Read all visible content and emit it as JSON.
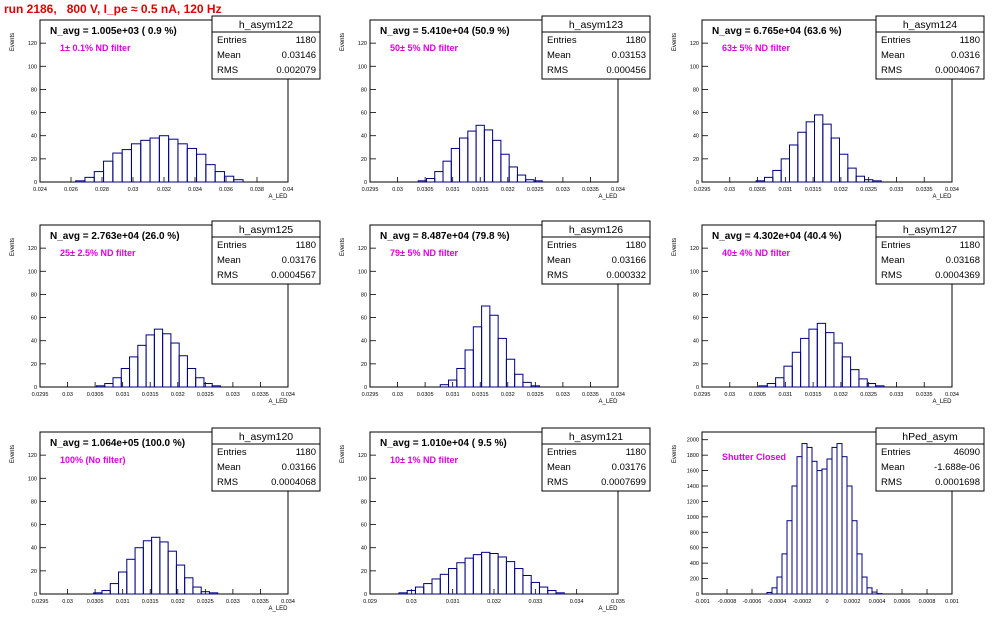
{
  "page_title": "run 2186,   800 V, I_pe ≈ 0.5 nA, 120 Hz",
  "colors": {
    "title": "#e00000",
    "annotation": "#e000e0",
    "histogram": "#00007f",
    "axis": "#000000"
  },
  "chart_data": [
    {
      "type": "bar",
      "hist_name": "h_asym122",
      "title": "N_avg = 1.005e+03 ( 0.9 %)",
      "annotation": "1± 0.1% ND filter",
      "ylabel": "Events",
      "xlabel": "A_LED",
      "stats": [
        [
          "Entries",
          "1180"
        ],
        [
          "Mean",
          "0.03146"
        ],
        [
          "RMS",
          "0.002079"
        ]
      ],
      "xlim": [
        0.024,
        0.04
      ],
      "ylim": [
        0,
        140
      ],
      "xticks": [
        "0.024",
        "0.026",
        "0.028",
        "0.03",
        "0.032",
        "0.034",
        "0.036",
        "0.038",
        "0.04"
      ],
      "xtick_values": [
        0.024,
        0.026,
        0.028,
        0.03,
        0.032,
        0.034,
        0.036,
        0.038,
        0.04
      ],
      "yticks": [
        "0",
        "20",
        "40",
        "60",
        "80",
        "100",
        "120"
      ],
      "ytick_values": [
        0,
        20,
        40,
        60,
        80,
        100,
        120
      ],
      "x": [
        0.0266,
        0.0272,
        0.0278,
        0.0284,
        0.029,
        0.0296,
        0.0302,
        0.0308,
        0.0314,
        0.032,
        0.0326,
        0.0332,
        0.0338,
        0.0344,
        0.035,
        0.0356,
        0.0362,
        0.0368
      ],
      "values": [
        1,
        4,
        9,
        18,
        25,
        28,
        33,
        36,
        38,
        40,
        37,
        33,
        29,
        24,
        15,
        9,
        5,
        2
      ]
    },
    {
      "type": "bar",
      "hist_name": "h_asym123",
      "title": "N_avg = 5.410e+04 (50.9 %)",
      "annotation": "50± 5% ND filter",
      "ylabel": "Events",
      "xlabel": "A_LED",
      "stats": [
        [
          "Entries",
          "1180"
        ],
        [
          "Mean",
          "0.03153"
        ],
        [
          "RMS",
          "0.000456"
        ]
      ],
      "xlim": [
        0.0295,
        0.034
      ],
      "ylim": [
        0,
        140
      ],
      "xticks": [
        "0.0295",
        "0.03",
        "0.0305",
        "0.031",
        "0.0315",
        "0.032",
        "0.0325",
        "0.033",
        "0.0335",
        "0.034"
      ],
      "xtick_values": [
        0.0295,
        0.03,
        0.0305,
        0.031,
        0.0315,
        0.032,
        0.0325,
        0.033,
        0.0335,
        0.034
      ],
      "yticks": [
        "0",
        "20",
        "40",
        "60",
        "80",
        "100",
        "120"
      ],
      "ytick_values": [
        0,
        20,
        40,
        60,
        80,
        100,
        120
      ],
      "x": [
        0.03045,
        0.0306,
        0.03075,
        0.0309,
        0.03105,
        0.0312,
        0.03135,
        0.0315,
        0.03165,
        0.0318,
        0.03195,
        0.0321,
        0.03225,
        0.0324,
        0.03255
      ],
      "values": [
        1,
        3,
        9,
        18,
        29,
        38,
        44,
        49,
        45,
        36,
        24,
        13,
        6,
        2,
        1
      ]
    },
    {
      "type": "bar",
      "hist_name": "h_asym124",
      "title": "N_avg = 6.765e+04 (63.6 %)",
      "annotation": "63± 5% ND filter",
      "ylabel": "Events",
      "xlabel": "A_LED",
      "stats": [
        [
          "Entries",
          "1180"
        ],
        [
          "Mean",
          "0.0316"
        ],
        [
          "RMS",
          "0.0004067"
        ]
      ],
      "xlim": [
        0.0295,
        0.034
      ],
      "ylim": [
        0,
        140
      ],
      "xticks": [
        "0.0295",
        "0.03",
        "0.0305",
        "0.031",
        "0.0315",
        "0.032",
        "0.0325",
        "0.033",
        "0.0335",
        "0.034"
      ],
      "xtick_values": [
        0.0295,
        0.03,
        0.0305,
        0.031,
        0.0315,
        0.032,
        0.0325,
        0.033,
        0.0335,
        0.034
      ],
      "yticks": [
        "0",
        "20",
        "40",
        "60",
        "80",
        "100",
        "120"
      ],
      "ytick_values": [
        0,
        20,
        40,
        60,
        80,
        100,
        120
      ],
      "x": [
        0.03055,
        0.0307,
        0.03085,
        0.031,
        0.03115,
        0.0313,
        0.03145,
        0.0316,
        0.03175,
        0.0319,
        0.03205,
        0.0322,
        0.03235,
        0.0325,
        0.03265
      ],
      "values": [
        1,
        4,
        10,
        20,
        32,
        43,
        52,
        58,
        50,
        38,
        24,
        12,
        5,
        2,
        1
      ]
    },
    {
      "type": "bar",
      "hist_name": "h_asym125",
      "title": "N_avg = 2.763e+04 (26.0 %)",
      "annotation": "25± 2.5% ND filter",
      "ylabel": "Events",
      "xlabel": "A_LED",
      "stats": [
        [
          "Entries",
          "1180"
        ],
        [
          "Mean",
          "0.03176"
        ],
        [
          "RMS",
          "0.0004567"
        ]
      ],
      "xlim": [
        0.0295,
        0.034
      ],
      "ylim": [
        0,
        140
      ],
      "xticks": [
        "0.0295",
        "0.03",
        "0.0305",
        "0.031",
        "0.0315",
        "0.032",
        "0.0325",
        "0.033",
        "0.0335",
        "0.034"
      ],
      "xtick_values": [
        0.0295,
        0.03,
        0.0305,
        0.031,
        0.0315,
        0.032,
        0.0325,
        0.033,
        0.0335,
        0.034
      ],
      "yticks": [
        "0",
        "20",
        "40",
        "60",
        "80",
        "100",
        "120"
      ],
      "ytick_values": [
        0,
        20,
        40,
        60,
        80,
        100,
        120
      ],
      "x": [
        0.0306,
        0.03075,
        0.0309,
        0.03105,
        0.0312,
        0.03135,
        0.0315,
        0.03165,
        0.0318,
        0.03195,
        0.0321,
        0.03225,
        0.0324,
        0.03255,
        0.0327
      ],
      "values": [
        1,
        3,
        8,
        16,
        26,
        36,
        45,
        50,
        46,
        38,
        27,
        16,
        8,
        3,
        1
      ]
    },
    {
      "type": "bar",
      "hist_name": "h_asym126",
      "title": "N_avg = 8.487e+04 (79.8 %)",
      "annotation": "79± 5% ND filter",
      "ylabel": "Events",
      "xlabel": "A_LED",
      "stats": [
        [
          "Entries",
          "1180"
        ],
        [
          "Mean",
          "0.03166"
        ],
        [
          "RMS",
          "0.000332"
        ]
      ],
      "xlim": [
        0.0295,
        0.034
      ],
      "ylim": [
        0,
        140
      ],
      "xticks": [
        "0.0295",
        "0.03",
        "0.0305",
        "0.031",
        "0.0315",
        "0.032",
        "0.0325",
        "0.033",
        "0.0335",
        "0.034"
      ],
      "xtick_values": [
        0.0295,
        0.03,
        0.0305,
        0.031,
        0.0315,
        0.032,
        0.0325,
        0.033,
        0.0335,
        0.034
      ],
      "yticks": [
        "0",
        "20",
        "40",
        "60",
        "80",
        "100",
        "120"
      ],
      "ytick_values": [
        0,
        20,
        40,
        60,
        80,
        100,
        120
      ],
      "x": [
        0.03085,
        0.031,
        0.03115,
        0.0313,
        0.03145,
        0.0316,
        0.03175,
        0.0319,
        0.03205,
        0.0322,
        0.03235,
        0.0325
      ],
      "values": [
        2,
        6,
        16,
        32,
        52,
        70,
        62,
        42,
        24,
        11,
        4,
        1
      ]
    },
    {
      "type": "bar",
      "hist_name": "h_asym127",
      "title": "N_avg = 4.302e+04 (40.4 %)",
      "annotation": "40± 4% ND filter",
      "ylabel": "Events",
      "xlabel": "A_LED",
      "stats": [
        [
          "Entries",
          "1180"
        ],
        [
          "Mean",
          "0.03168"
        ],
        [
          "RMS",
          "0.0004369"
        ]
      ],
      "xlim": [
        0.0295,
        0.034
      ],
      "ylim": [
        0,
        140
      ],
      "xticks": [
        "0.0295",
        "0.03",
        "0.0305",
        "0.031",
        "0.0315",
        "0.032",
        "0.0325",
        "0.033",
        "0.0335",
        "0.034"
      ],
      "xtick_values": [
        0.0295,
        0.03,
        0.0305,
        0.031,
        0.0315,
        0.032,
        0.0325,
        0.033,
        0.0335,
        0.034
      ],
      "yticks": [
        "0",
        "20",
        "40",
        "60",
        "80",
        "100",
        "120"
      ],
      "ytick_values": [
        0,
        20,
        40,
        60,
        80,
        100,
        120
      ],
      "x": [
        0.0306,
        0.03075,
        0.0309,
        0.03105,
        0.0312,
        0.03135,
        0.0315,
        0.03165,
        0.0318,
        0.03195,
        0.0321,
        0.03225,
        0.0324,
        0.03255,
        0.0327
      ],
      "values": [
        1,
        3,
        8,
        18,
        30,
        42,
        50,
        55,
        47,
        38,
        26,
        15,
        7,
        3,
        1
      ]
    },
    {
      "type": "bar",
      "hist_name": "h_asym120",
      "title": "N_avg = 1.064e+05 (100.0 %)",
      "annotation": "100% (No filter)",
      "ylabel": "Events",
      "xlabel": "A_LED",
      "stats": [
        [
          "Entries",
          "1180"
        ],
        [
          "Mean",
          "0.03166"
        ],
        [
          "RMS",
          "0.0004068"
        ]
      ],
      "xlim": [
        0.0295,
        0.034
      ],
      "ylim": [
        0,
        140
      ],
      "xticks": [
        "0.0295",
        "0.03",
        "0.0305",
        "0.031",
        "0.0315",
        "0.032",
        "0.0325",
        "0.033",
        "0.0335",
        "0.034"
      ],
      "xtick_values": [
        0.0295,
        0.03,
        0.0305,
        0.031,
        0.0315,
        0.032,
        0.0325,
        0.033,
        0.0335,
        0.034
      ],
      "yticks": [
        "0",
        "20",
        "40",
        "60",
        "80",
        "100",
        "120"
      ],
      "ytick_values": [
        0,
        20,
        40,
        60,
        80,
        100,
        120
      ],
      "x": [
        0.03055,
        0.0307,
        0.03085,
        0.031,
        0.03115,
        0.0313,
        0.03145,
        0.0316,
        0.03175,
        0.0319,
        0.03205,
        0.0322,
        0.03235,
        0.0325,
        0.03265
      ],
      "values": [
        1,
        3,
        9,
        19,
        30,
        40,
        46,
        49,
        45,
        37,
        25,
        14,
        6,
        2,
        1
      ]
    },
    {
      "type": "bar",
      "hist_name": "h_asym121",
      "title": "N_avg = 1.010e+04 ( 9.5 %)",
      "annotation": "10± 1% ND filter",
      "ylabel": "Events",
      "xlabel": "A_LED",
      "stats": [
        [
          "Entries",
          "1180"
        ],
        [
          "Mean",
          "0.03176"
        ],
        [
          "RMS",
          "0.0007699"
        ]
      ],
      "xlim": [
        0.029,
        0.035
      ],
      "ylim": [
        0,
        140
      ],
      "xticks": [
        "0.029",
        "0.03",
        "0.031",
        "0.032",
        "0.033",
        "0.034",
        "0.035"
      ],
      "xtick_values": [
        0.029,
        0.03,
        0.031,
        0.032,
        0.033,
        0.034,
        0.035
      ],
      "yticks": [
        "0",
        "20",
        "40",
        "60",
        "80",
        "100",
        "120"
      ],
      "ytick_values": [
        0,
        20,
        40,
        60,
        80,
        100,
        120
      ],
      "x": [
        0.0298,
        0.03,
        0.0302,
        0.0304,
        0.0306,
        0.0308,
        0.031,
        0.0312,
        0.0314,
        0.0316,
        0.0318,
        0.032,
        0.0322,
        0.0324,
        0.0326,
        0.0328,
        0.033,
        0.0332,
        0.0334,
        0.0336
      ],
      "values": [
        1,
        3,
        6,
        9,
        13,
        17,
        22,
        27,
        31,
        34,
        36,
        35,
        32,
        28,
        22,
        16,
        10,
        6,
        3,
        1
      ]
    },
    {
      "type": "bar",
      "hist_name": "hPed_asym",
      "title": "",
      "annotation": "Shutter Closed",
      "ylabel": "Events",
      "xlabel": "",
      "stats": [
        [
          "Entries",
          "46090"
        ],
        [
          "Mean",
          "-1.688e-06"
        ],
        [
          "RMS",
          "0.0001698"
        ]
      ],
      "xlim": [
        -0.001,
        0.001
      ],
      "ylim": [
        0,
        2100
      ],
      "xticks": [
        "-0.001",
        "-0.0008",
        "-0.0006",
        "-0.0004",
        "-0.0002",
        "0",
        "0.0002",
        "0.0004",
        "0.0006",
        "0.0008",
        "0.001"
      ],
      "xtick_values": [
        -0.001,
        -0.0008,
        -0.0006,
        -0.0004,
        -0.0002,
        0,
        0.0002,
        0.0004,
        0.0006,
        0.0008,
        0.001
      ],
      "yticks": [
        "0",
        "200",
        "400",
        "600",
        "800",
        "1000",
        "1200",
        "1400",
        "1600",
        "1800",
        "2000"
      ],
      "ytick_values": [
        0,
        200,
        400,
        600,
        800,
        1000,
        1200,
        1400,
        1600,
        1800,
        2000
      ],
      "x": [
        -0.00046,
        -0.00042,
        -0.00038,
        -0.00034,
        -0.0003,
        -0.00026,
        -0.00022,
        -0.00018,
        -0.00014,
        -0.0001,
        -6e-05,
        -2e-05,
        2e-05,
        6e-05,
        0.0001,
        0.00014,
        0.00018,
        0.00022,
        0.00026,
        0.0003,
        0.00034,
        0.00038,
        0.00042
      ],
      "values": [
        20,
        80,
        220,
        520,
        950,
        1400,
        1780,
        1950,
        1900,
        1720,
        1600,
        1620,
        1750,
        1900,
        1950,
        1780,
        1400,
        950,
        520,
        220,
        80,
        25,
        5
      ]
    }
  ]
}
